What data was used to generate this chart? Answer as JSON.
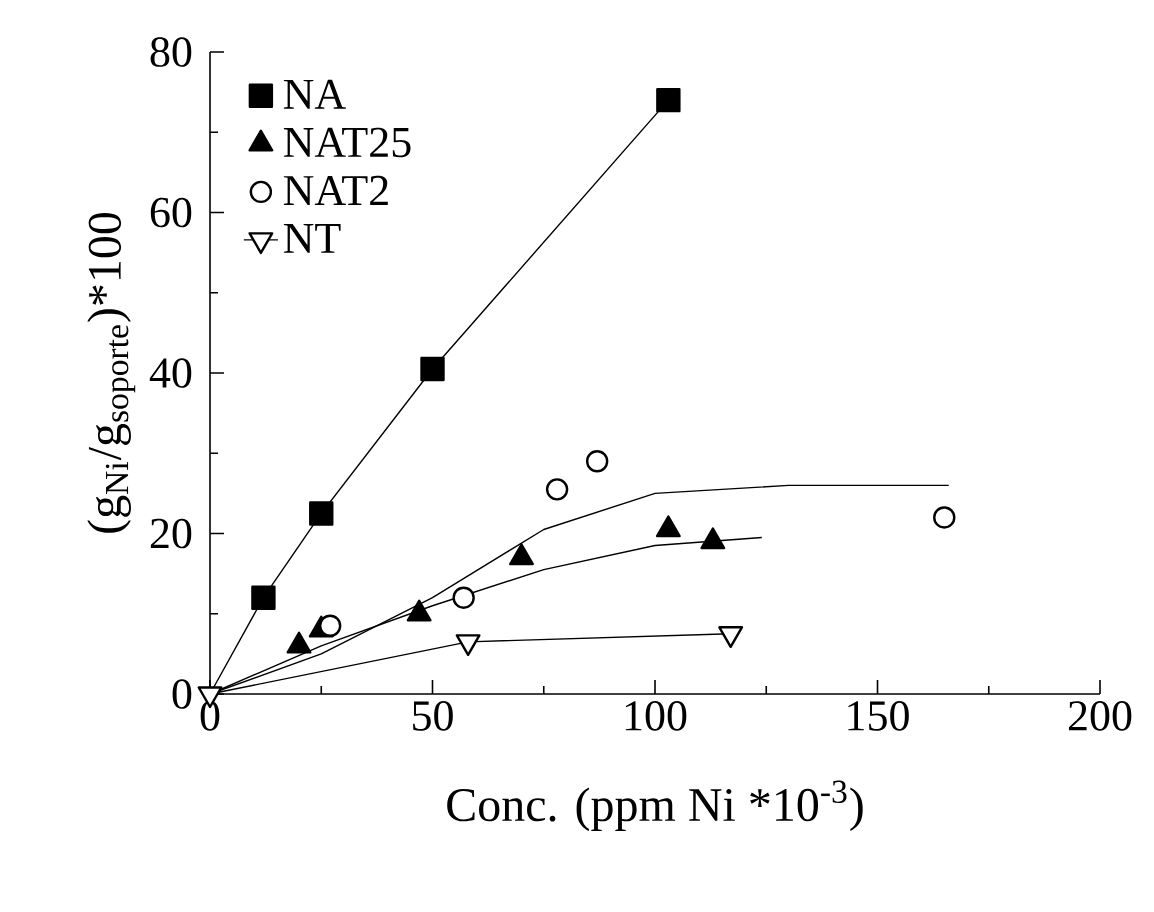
{
  "chart_data": {
    "type": "scatter",
    "xlabel": "Conc. (ppm Ni *10$^{-3}$)",
    "ylabel": "(g$_{Ni}$/g$_{soporte}$)*100",
    "xlim": [
      0,
      200
    ],
    "ylim": [
      0,
      80
    ],
    "xticks": [
      0,
      50,
      100,
      150,
      200
    ],
    "yticks": [
      0,
      20,
      40,
      60,
      80
    ],
    "grid": false,
    "legend": "top left",
    "series": [
      {
        "name": "NA",
        "marker": "square",
        "color": "#000000",
        "x": [
          12,
          25,
          50,
          103
        ],
        "values": [
          12,
          22.5,
          40.5,
          74
        ]
      },
      {
        "name": "NAT25",
        "marker": "triangle",
        "color": "#000000",
        "x": [
          20,
          25,
          47,
          70,
          103,
          113
        ],
        "values": [
          6,
          8,
          10,
          17,
          20.5,
          19
        ]
      },
      {
        "name": "NAT2",
        "marker": "circle",
        "color": "#000000",
        "x": [
          27,
          57,
          78,
          87,
          165
        ],
        "values": [
          8.5,
          12,
          25.5,
          29,
          22
        ]
      },
      {
        "name": "NT",
        "type": "line",
        "marker": "triangle",
        "line_style": "solid",
        "color": "#000000",
        "x": [
          0,
          58,
          117
        ],
        "values": [
          0,
          6.5,
          7.5
        ]
      },
      {
        "type": "line",
        "marker": "none",
        "line_style": "solid",
        "color": "#000000",
        "x": [
          0,
          12,
          25,
          50,
          103
        ],
        "values": [
          0,
          12,
          22.5,
          40.5,
          74
        ]
      },
      {
        "type": "line",
        "marker": "none",
        "line_style": "solid",
        "color": "#000000",
        "x": [
          0,
          25,
          50,
          75,
          100,
          124
        ],
        "values": [
          0,
          6,
          11,
          15.5,
          18.5,
          19.5
        ]
      },
      {
        "type": "line",
        "marker": "none",
        "line_style": "solid",
        "color": "#000000",
        "x": [
          0,
          25,
          50,
          75,
          100,
          130,
          166
        ],
        "values": [
          0,
          5,
          12,
          20.5,
          25,
          26,
          26
        ]
      }
    ]
  }
}
